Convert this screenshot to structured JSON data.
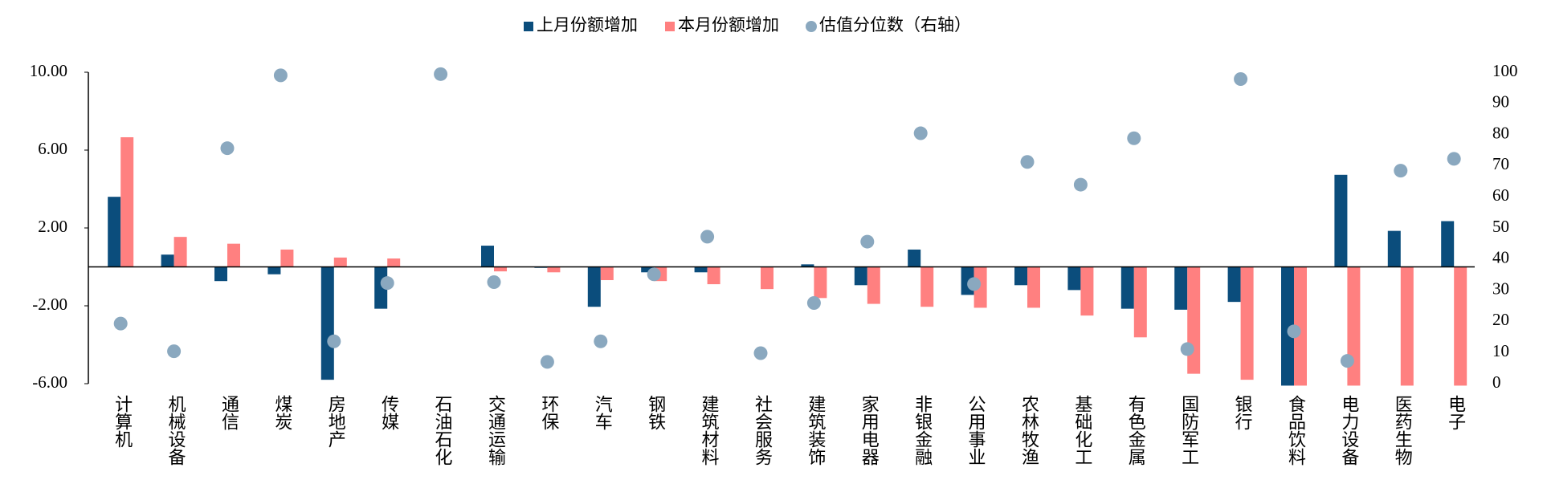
{
  "chart_data": {
    "type": "bar",
    "categories": [
      "计算机",
      "机械设备",
      "通信",
      "煤炭",
      "房地产",
      "传媒",
      "石油石化",
      "交通运输",
      "环保",
      "汽车",
      "钢铁",
      "建筑材料",
      "社会服务",
      "建筑装饰",
      "家用电器",
      "非银金融",
      "公用事业",
      "农林牧渔",
      "基础化工",
      "有色金属",
      "国防军工",
      "银行",
      "食品饮料",
      "电力设备",
      "医药生物",
      "电子"
    ],
    "series": [
      {
        "name": "上月份额增加",
        "type": "bar",
        "color": "#0b4d7c",
        "values": [
          3.6,
          0.63,
          -0.73,
          -0.38,
          -5.8,
          -2.15,
          0,
          1.09,
          -0.05,
          -2.05,
          -0.28,
          -0.28,
          0,
          0.13,
          -0.94,
          0.89,
          -1.44,
          -0.94,
          -1.19,
          -2.15,
          -2.2,
          -1.8,
          -6.1,
          4.73,
          1.85,
          2.35
        ]
      },
      {
        "name": "本月份额增加",
        "type": "bar",
        "color": "#ff8080",
        "values": [
          6.66,
          1.54,
          1.19,
          0.89,
          0.48,
          0.43,
          0,
          -0.23,
          -0.28,
          -0.68,
          -0.73,
          -0.89,
          -1.14,
          -1.6,
          -1.9,
          -2.05,
          -2.1,
          -2.1,
          -2.5,
          -3.62,
          -5.49,
          -5.8,
          -6.1,
          -6.1,
          -6.1,
          -6.1
        ]
      },
      {
        "name": "估值分位数（右轴）",
        "type": "scatter",
        "axis": "y2",
        "color": "#8aa8bf",
        "values": [
          19.3,
          10.4,
          75.6,
          99,
          13.6,
          32.3,
          99.4,
          32.6,
          7,
          13.6,
          35.1,
          47.2,
          9.8,
          25.9,
          45.6,
          80.4,
          32,
          71.2,
          63.9,
          78.8,
          11.1,
          97.8,
          16.8,
          7.3,
          68.4,
          72.2
        ]
      }
    ],
    "ylim": [
      -6,
      10
    ],
    "yticks": [
      {
        "value": -6,
        "label": "-6.00"
      },
      {
        "value": -2,
        "label": "-2.00"
      },
      {
        "value": 2,
        "label": "2.00"
      },
      {
        "value": 6,
        "label": "6.00"
      },
      {
        "value": 10,
        "label": "10.00"
      }
    ],
    "y2lim": [
      0,
      100
    ],
    "y2ticks": [
      0,
      10,
      20,
      30,
      40,
      50,
      60,
      70,
      80,
      90,
      100
    ],
    "legend": "top"
  }
}
